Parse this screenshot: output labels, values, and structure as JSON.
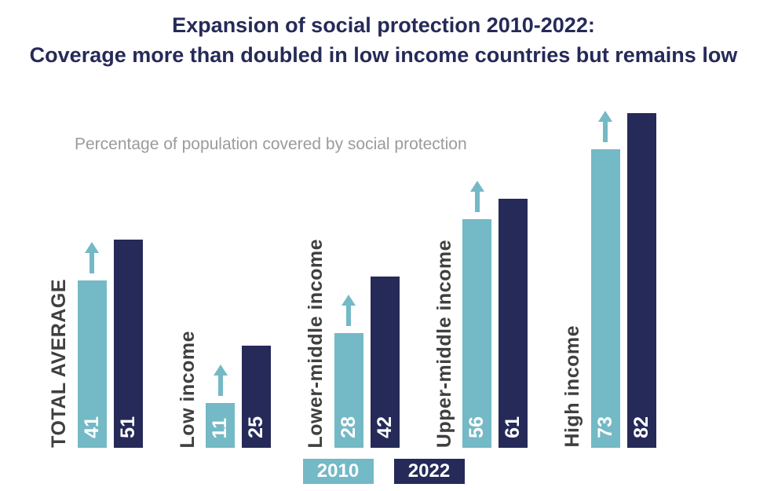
{
  "title": {
    "line1": "Expansion of social protection 2010-2022:",
    "line2": "Coverage more than doubled in low income countries but remains low"
  },
  "colors": {
    "teal_2010": "#74b9c6",
    "navy_2022": "#262a58",
    "title_text": "#262a58",
    "note_text": "#9b9b9b",
    "category_label_text": "#3f3f3f"
  },
  "chart_data": {
    "type": "bar",
    "title": "Expansion of social protection 2010-2022: Coverage more than doubled in low income countries but remains low",
    "note": "Percentage of population covered by social protection",
    "categories": [
      "TOTAL AVERAGE",
      "Low income",
      "Lower-middle income",
      "Upper-middle income",
      "High income"
    ],
    "series": [
      {
        "name": "2010",
        "color": "#74b9c6",
        "values": [
          41,
          11,
          28,
          56,
          73
        ]
      },
      {
        "name": "2022",
        "color": "#262a58",
        "values": [
          51,
          25,
          42,
          61,
          82
        ]
      }
    ],
    "xlabel": "",
    "ylabel": "Percentage of population covered by social protection",
    "ylim": [
      0,
      100
    ],
    "grid": false,
    "legend_position": "bottom",
    "annotations": [
      "upward increase arrow above each 2010 bar"
    ]
  }
}
